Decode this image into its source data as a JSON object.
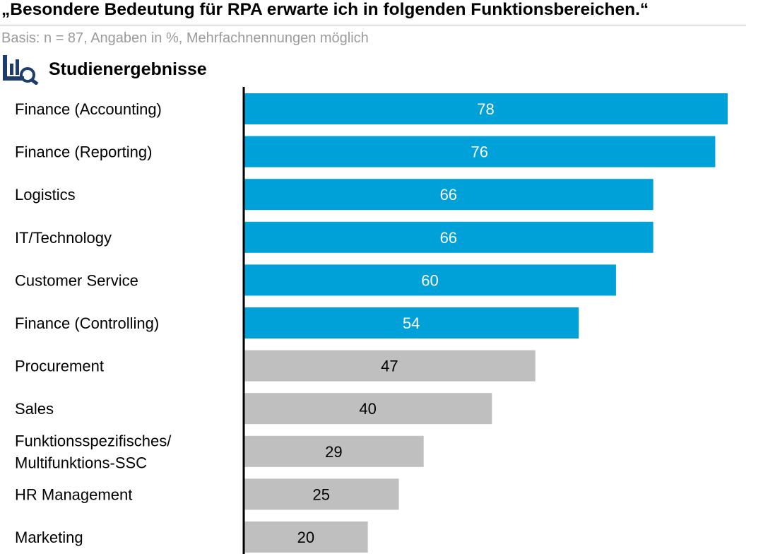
{
  "header": {
    "title": "„Besondere Bedeutung für RPA erwarte ich in folgenden Funktionsbereichen.“",
    "subtitle": "Basis: n = 87, Angaben in %, Mehrfachnennungen möglich",
    "section_title": "Studienergebnisse",
    "section_icon": "chart-search-icon"
  },
  "colors": {
    "highlight": "#00a0d8",
    "muted": "#bfbfbf",
    "axis": "#000000",
    "icon": "#1f3d6b"
  },
  "chart_data": {
    "type": "bar",
    "orientation": "horizontal",
    "categories": [
      "Finance (Accounting)",
      "Finance (Reporting)",
      "Logistics",
      "IT/Technology",
      "Customer Service",
      "Finance (Controlling)",
      "Procurement",
      "Sales",
      "Funktionsspezifisches/\nMultifunktions-SSC",
      "HR Management",
      "Marketing"
    ],
    "values": [
      78,
      76,
      66,
      66,
      60,
      54,
      47,
      40,
      29,
      25,
      20
    ],
    "highlight": [
      true,
      true,
      true,
      true,
      true,
      true,
      false,
      false,
      false,
      false,
      false
    ],
    "xlim": [
      0,
      78
    ],
    "data_labels": true,
    "grid": false
  }
}
